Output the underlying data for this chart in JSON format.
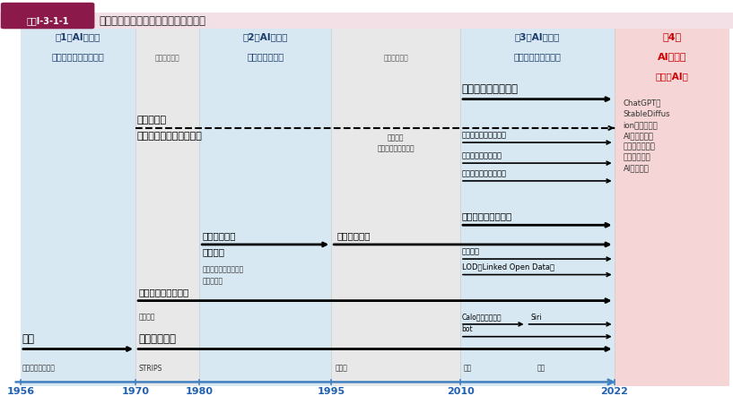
{
  "title_box_text": "図表Ⅰ-3-1-1",
  "title_text": "人工知能・ビッグデータ技術の俦瞩図",
  "title_box_color": "#8b1a4a",
  "title_bg_color": "#f2e0e6",
  "era1_bg": "#d8e8f2",
  "era2_bg": "#d8e8f2",
  "era3_bg": "#d8e8f2",
  "era4_bg": "#f5d5d5",
  "winter_bg": "#e8e8e8",
  "era1_title_l1": "第1次AIブーム",
  "era1_title_l2": "（推論・探索の時代）",
  "era2_title_l1": "第2次AIブーム",
  "era2_title_l2": "（知識の時代）",
  "era3_title_l1": "第3次AIブーム",
  "era3_title_l2": "（機械学習の時代）",
  "era4_title_l1": "第4次",
  "era4_title_l2": "AIブーム",
  "era4_title_l3": "（生成AI）",
  "era_title_color": "#1a3a6b",
  "era4_title_color": "#cc0000",
  "winter1_text": "（冬の時代）",
  "winter2_text": "（冬の時代）",
  "year_color": "#2060b0",
  "axis_color": "#4080c0",
  "chatgpt_text": "ChatGPTや\nStableDiffus\nionなどの生成\nAIの登場によ\nり、冬の時代を\n経ず世界的な\nAIブームへ",
  "deep_learning": "ディープラーニング",
  "car_robot": "車・ロボットへの活用",
  "nlp": "統計的自然言語処理",
  "search": "検索エンジンへの活用",
  "ml_nn_l1": "機械学習・",
  "ml_nn_l2": "ニューラルネットワーク",
  "web_big": "ウェブと\nビッグデータの発展",
  "task_onto": "タスクオントロジー",
  "expert_sys_l1": "エキスパート",
  "expert_sys_l2": "システム",
  "ontology": "オントロジー",
  "mycin": "マイシン（医療診断）",
  "dendral": "デンドラル",
  "watson": "ワトソン",
  "lod": "LOD（Linked Open Data）",
  "dialog": "対話システムの研究",
  "eliza": "イライザ",
  "calo": "Caloプロジェクト",
  "siri": "Siri",
  "bot": "bot",
  "search_label": "探索",
  "planning": "プランニング",
  "maze": "迷路・ハノイの塔",
  "strips": "STRIPS",
  "chess": "チェス",
  "shogi": "将棋",
  "igo": "囲硩",
  "year_positions": {
    "1956": 0.028,
    "1970": 0.185,
    "1980": 0.272,
    "1995": 0.452,
    "2010": 0.628,
    "2022": 0.838
  }
}
